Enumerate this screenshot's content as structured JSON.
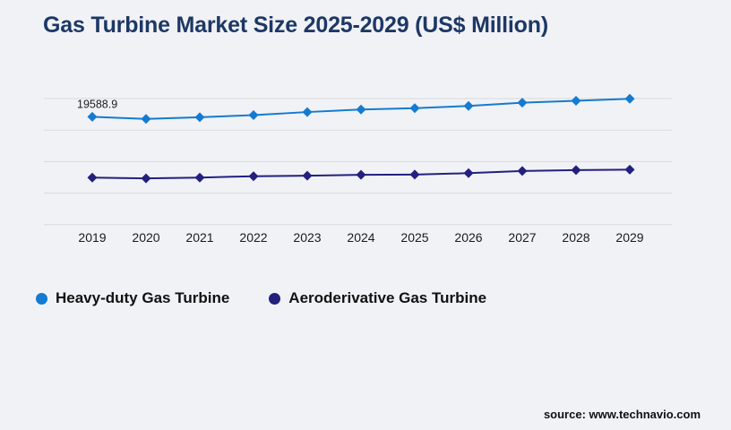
{
  "page": {
    "background": "#f1f2f6"
  },
  "header": {
    "title": "Gas Turbine Market Size 2025-2029 (US$ Million)",
    "title_color": "#1d3865"
  },
  "legend": {
    "items": [
      {
        "label": "Heavy-duty Gas Turbine",
        "color": "#147bd0"
      },
      {
        "label": "Aeroderivative Gas Turbine",
        "color": "#23207e"
      }
    ]
  },
  "source": {
    "label": "source: www.technavio.com"
  },
  "chart_data": {
    "type": "line",
    "title": "Gas Turbine Market Size 2025-2029 (US$ Million)",
    "unit": "US$ Million",
    "categories": [
      "2019",
      "2020",
      "2021",
      "2022",
      "2023",
      "2024",
      "2025",
      "2026",
      "2027",
      "2028",
      "2029"
    ],
    "series": [
      {
        "name": "Heavy-duty Gas Turbine",
        "color": "#147bd0",
        "marker": "diamond",
        "values": [
          19588.9,
          19200,
          19500,
          19900,
          20450,
          20900,
          21150,
          21550,
          22150,
          22500,
          22850
        ],
        "data_labels": [
          {
            "index": 0,
            "text": "19588.9"
          }
        ]
      },
      {
        "name": "Aeroderivative Gas Turbine",
        "color": "#23207e",
        "marker": "diamond",
        "values": [
          8550,
          8400,
          8550,
          8800,
          8900,
          9050,
          9100,
          9350,
          9750,
          9900,
          10000
        ]
      }
    ],
    "ylim": [
      0,
      22900
    ],
    "gridlines": 5,
    "grid_color": "#d9d9d9",
    "grid_on": true,
    "y_axis_labels_visible": false,
    "legend_position": "bottom-left",
    "xlabel": "",
    "ylabel": ""
  }
}
